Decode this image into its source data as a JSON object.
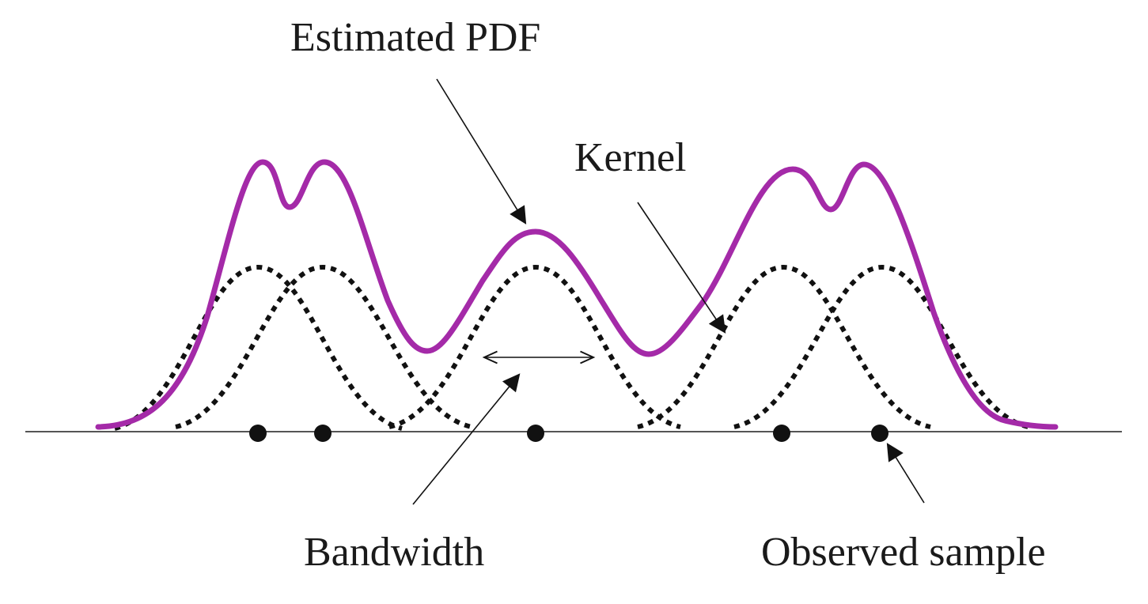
{
  "labels": {
    "estimated_pdf": "Estimated PDF",
    "kernel": "Kernel",
    "bandwidth": "Bandwidth",
    "observed_sample": "Observed sample"
  },
  "colors": {
    "pdf_curve": "#A42AA8",
    "kernel_curve": "#111111",
    "axis": "#555555",
    "text": "#1a1a1a"
  },
  "diagram": {
    "sample_count": 5,
    "kernel_shape": "gaussian",
    "pdf_style": "solid",
    "kernel_style": "dotted"
  }
}
